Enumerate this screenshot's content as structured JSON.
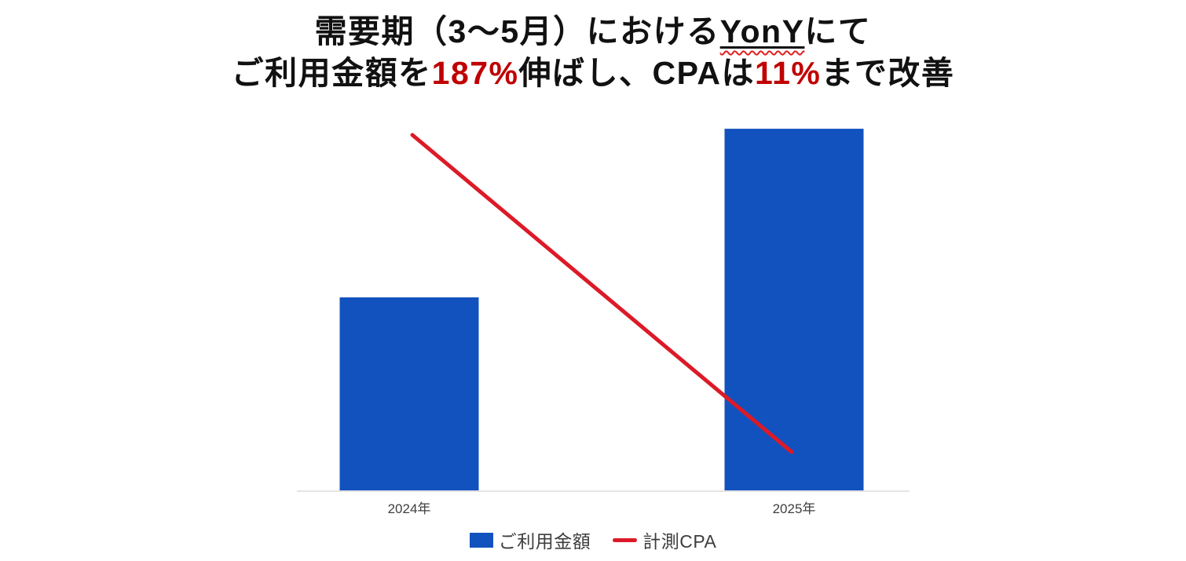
{
  "title": {
    "line1_prefix": "需要期（3～5月）における",
    "line1_highlight": "YonY",
    "line1_suffix": "にて",
    "line2_part1": "ご利用金額を",
    "line2_value1": "187%",
    "line2_part2": "伸ばし、CPAは",
    "line2_value2": "11%",
    "line2_part3": "まで改善",
    "text_color": "#111111",
    "accent_color": "#C00000",
    "highlight_underline_color": "#111111",
    "highlight_squiggle_color": "#E02020"
  },
  "chart_data": {
    "type": "bar+line",
    "categories": [
      "2024年",
      "2025年"
    ],
    "series": [
      {
        "name": "ご利用金額",
        "type": "bar",
        "values": [
          100,
          187
        ],
        "color": "#1252BE"
      },
      {
        "name": "計測CPA",
        "type": "line",
        "values": [
          100,
          11
        ],
        "color": "#DC1A28"
      }
    ],
    "title": "",
    "xlabel": "",
    "ylabel": "",
    "ylim_bar_index": [
      0,
      205
    ],
    "ylim_line_percent": [
      0,
      110
    ],
    "gridlines": false,
    "legend_position": "bottom",
    "axis_color": "#E4E4E4",
    "tick_color": "#3F3F3F",
    "tick_font_size": 17
  }
}
